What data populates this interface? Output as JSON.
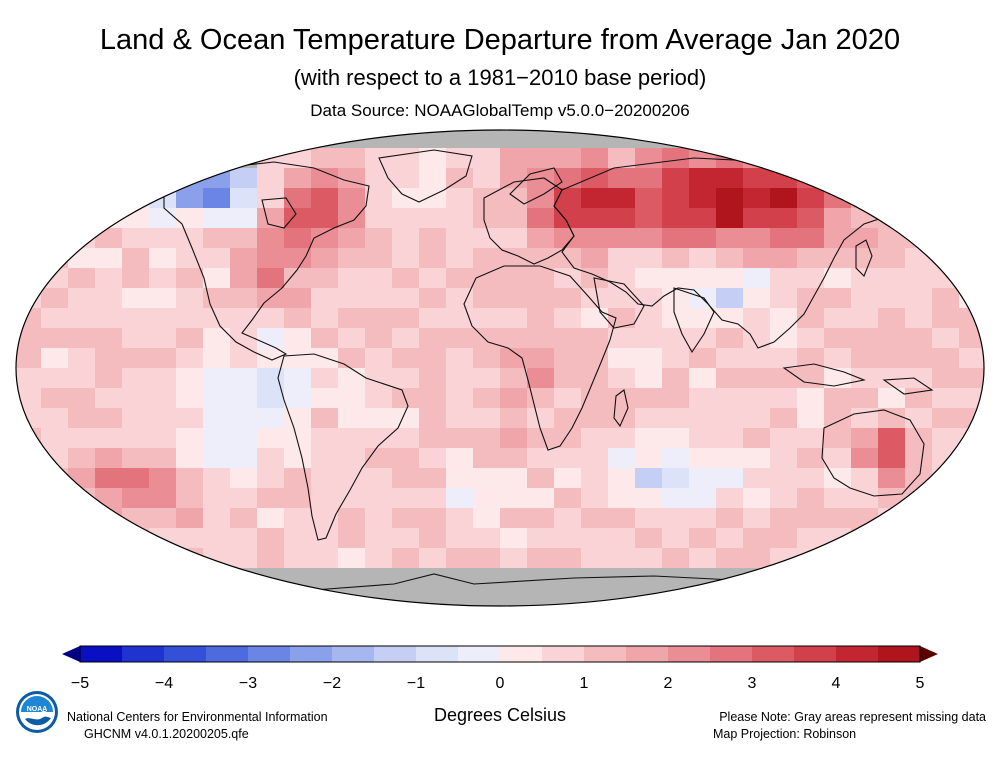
{
  "title": "Land & Ocean Temperature Departure from Average Jan 2020",
  "subtitle": "(with respect to a 1981−2010 base period)",
  "data_source": "Data Source: NOAAGlobalTemp v5.0.0−20200206",
  "colorbar": {
    "units": "Degrees Celsius",
    "ticks": [
      "−5",
      "−4",
      "−3",
      "−2",
      "−1",
      "0",
      "1",
      "2",
      "3",
      "4",
      "5"
    ],
    "tick_values": [
      -5,
      -4,
      -3,
      -2,
      -1,
      0,
      1,
      2,
      3,
      4,
      5
    ],
    "colors": [
      "#0a0fc4",
      "#1f33d0",
      "#3550d8",
      "#4d6adf",
      "#6a85e4",
      "#8aa0ea",
      "#a8b6ef",
      "#c5cef4",
      "#dce2f8",
      "#eeeefb",
      "#fde8ea",
      "#f9d3d6",
      "#f5bcc0",
      "#f0a5ab",
      "#ea8d94",
      "#e3747d",
      "#db5a64",
      "#d1404b",
      "#c32631",
      "#b0141d"
    ],
    "under_color": "#000080",
    "over_color": "#5a0000"
  },
  "map": {
    "projection": "Robinson",
    "missing_color": "#b5b5b5",
    "ocean_base_color": "#f6c8cb"
  },
  "footer": {
    "org": "National Centers for Environmental Information",
    "dataset": "GHCNM v4.0.1.20200205.qfe",
    "note": "Please Note: Gray areas represent missing data",
    "projection": "Map Projection: Robinson",
    "logo_text": "NOAA"
  }
}
